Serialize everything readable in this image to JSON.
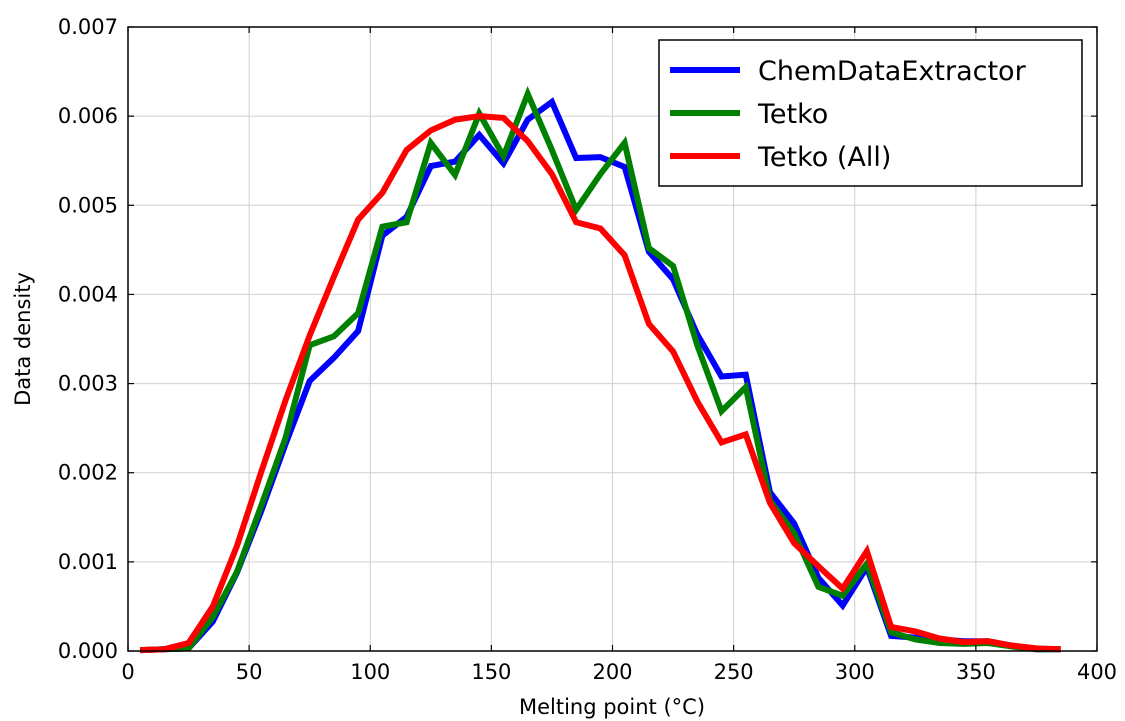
{
  "chart_data": {
    "type": "line",
    "xlabel": "Melting point (°C)",
    "ylabel": "Data density",
    "xlim": [
      0,
      400
    ],
    "ylim": [
      0,
      0.007
    ],
    "grid": true,
    "legend_placement": "top-right",
    "x_ticks": [
      "0",
      "50",
      "100",
      "150",
      "200",
      "250",
      "300",
      "350",
      "400"
    ],
    "y_ticks": [
      "0.000",
      "0.001",
      "0.002",
      "0.003",
      "0.004",
      "0.005",
      "0.006",
      "0.007"
    ],
    "x": [
      5,
      15,
      25,
      35,
      45,
      55,
      65,
      75,
      85,
      95,
      105,
      115,
      125,
      135,
      145,
      155,
      165,
      175,
      185,
      195,
      205,
      215,
      225,
      235,
      245,
      255,
      265,
      275,
      285,
      295,
      305,
      315,
      325,
      335,
      345,
      355,
      365,
      375,
      385
    ],
    "series": [
      {
        "name": "ChemDataExtractor",
        "color": "#0000ff",
        "values": [
          1e-05,
          2e-05,
          3e-05,
          0.00033,
          0.00088,
          0.00157,
          0.00232,
          0.00303,
          0.00329,
          0.00359,
          0.00466,
          0.00487,
          0.00544,
          0.00549,
          0.00579,
          0.00547,
          0.00596,
          0.00616,
          0.00553,
          0.00554,
          0.00543,
          0.00448,
          0.00417,
          0.00355,
          0.00308,
          0.0031,
          0.00178,
          0.00143,
          0.00082,
          0.00051,
          0.00094,
          0.00017,
          0.00015,
          0.00013,
          0.00011,
          0.00011,
          6e-05,
          2e-05,
          2e-05
        ]
      },
      {
        "name": "Tetko",
        "color": "#008000",
        "values": [
          1e-05,
          2e-05,
          3e-05,
          0.00038,
          0.00089,
          0.00163,
          0.00239,
          0.00343,
          0.00353,
          0.00379,
          0.00476,
          0.00481,
          0.0057,
          0.00534,
          0.00603,
          0.00555,
          0.00625,
          0.00562,
          0.00495,
          0.00535,
          0.0057,
          0.00452,
          0.00432,
          0.00343,
          0.00269,
          0.00296,
          0.00169,
          0.00132,
          0.00072,
          0.00062,
          0.00098,
          0.00021,
          0.00013,
          9e-05,
          8e-05,
          9e-05,
          5e-05,
          2e-05,
          2e-05
        ]
      },
      {
        "name": "Tetko (All)",
        "color": "#ff0000",
        "values": [
          1e-05,
          2e-05,
          9e-05,
          0.0005,
          0.00118,
          0.00201,
          0.00281,
          0.00354,
          0.0042,
          0.00484,
          0.00514,
          0.00562,
          0.00584,
          0.00596,
          0.006,
          0.00598,
          0.00572,
          0.00535,
          0.00481,
          0.00474,
          0.00444,
          0.00367,
          0.00336,
          0.0028,
          0.00234,
          0.00243,
          0.00166,
          0.00121,
          0.00095,
          0.0007,
          0.00112,
          0.00027,
          0.00022,
          0.00014,
          0.0001,
          0.00011,
          6e-05,
          3e-05,
          2e-05
        ]
      }
    ]
  }
}
